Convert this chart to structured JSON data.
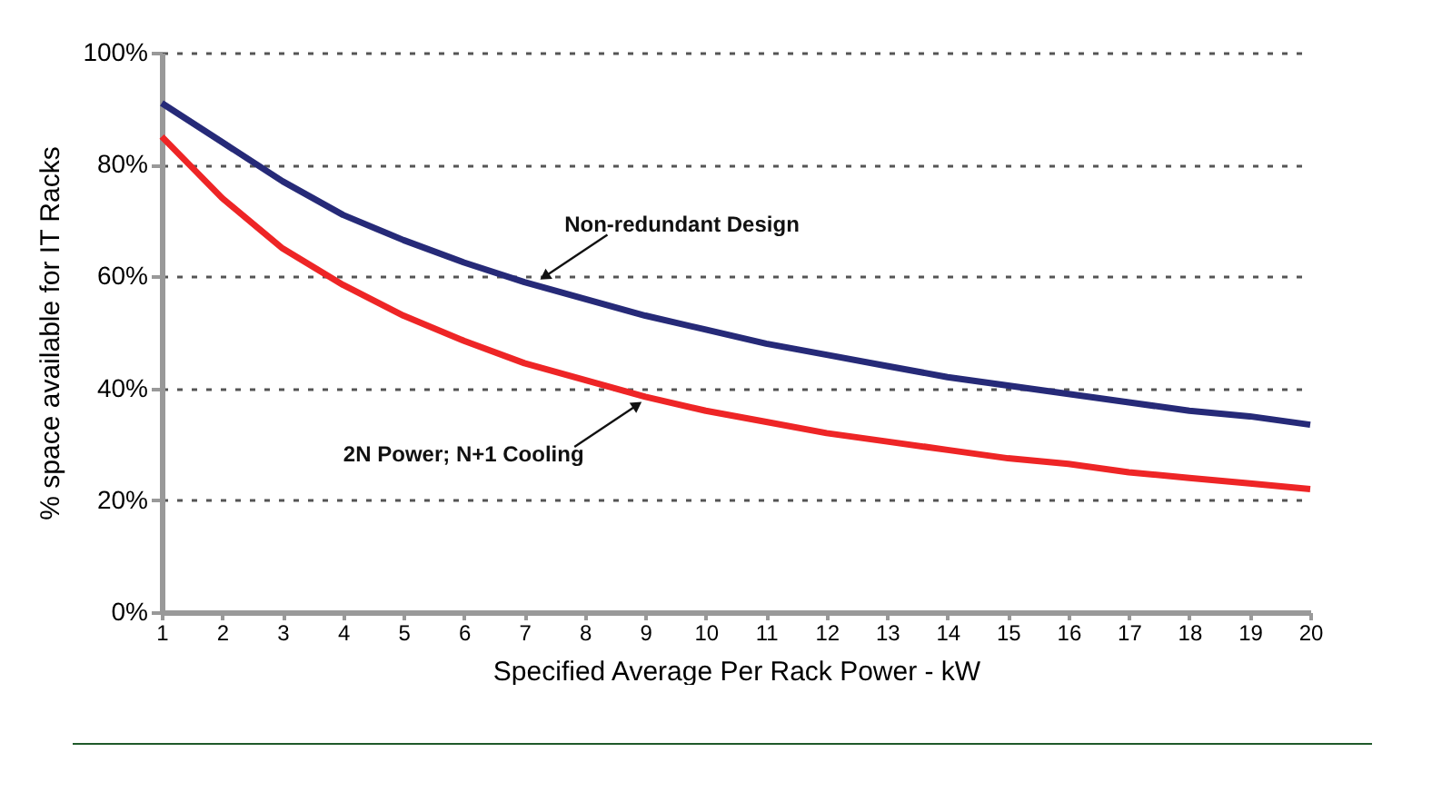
{
  "chart_data": {
    "type": "line",
    "xlabel": "Specified Average Per Rack Power - kW",
    "ylabel": "% space available for IT Racks",
    "x": [
      1,
      2,
      3,
      4,
      5,
      6,
      7,
      8,
      9,
      10,
      11,
      12,
      13,
      14,
      15,
      16,
      17,
      18,
      19,
      20
    ],
    "series": [
      {
        "color": "#262a78",
        "values": [
          91,
          84,
          77,
          71,
          66.5,
          62.5,
          59,
          56,
          53,
          50.5,
          48,
          46,
          44,
          42,
          40.5,
          39,
          37.5,
          36,
          35,
          33.5
        ]
      },
      {
        "color": "#ee2526",
        "values": [
          85,
          74,
          65,
          58.5,
          53,
          48.5,
          44.5,
          41.5,
          38.5,
          36,
          34,
          32,
          30.5,
          29,
          27.5,
          26.5,
          25,
          24,
          23,
          22
        ]
      }
    ],
    "xlim": [
      1,
      20
    ],
    "xticks": [
      1,
      2,
      3,
      4,
      5,
      6,
      7,
      8,
      9,
      10,
      11,
      12,
      13,
      14,
      15,
      16,
      17,
      18,
      19,
      20
    ],
    "ylim": [
      0,
      100
    ],
    "yticks": [
      {
        "value": 0,
        "label": "0%"
      },
      {
        "value": 20,
        "label": "20%"
      },
      {
        "value": 40,
        "label": "40%"
      },
      {
        "value": 60,
        "label": "60%"
      },
      {
        "value": 80,
        "label": "80%"
      },
      {
        "value": 100,
        "label": "100%"
      }
    ],
    "grid": "y",
    "marker": "none",
    "line_style": "solid",
    "annotations": [
      {
        "text": "Non-redundant Design",
        "x": 7.2,
        "y": 59
      },
      {
        "text": "2N Power; N+1 Cooling",
        "x": 9,
        "y": 38
      }
    ]
  }
}
